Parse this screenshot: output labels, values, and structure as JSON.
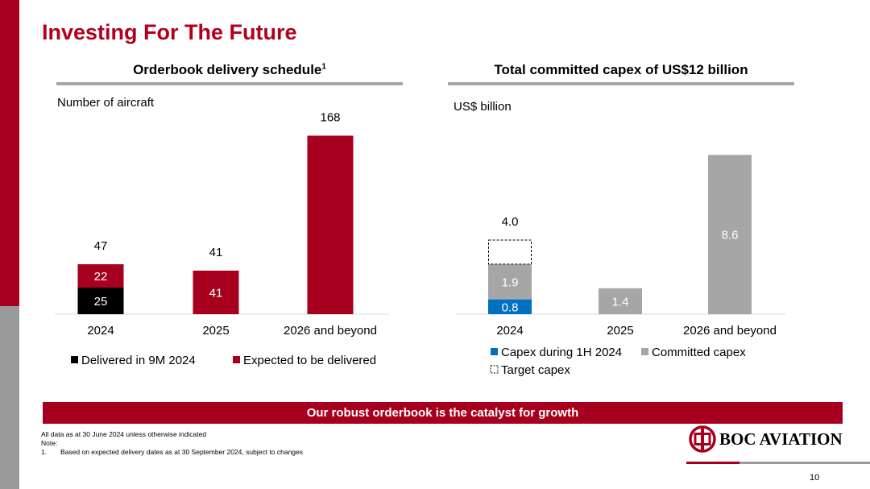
{
  "page": {
    "title": "Investing For The Future",
    "banner": "Our robust orderbook is the catalyst for growth",
    "footnotes": {
      "line1": "All data as at 30 June 2024 unless otherwise indicated",
      "line2": "Note:",
      "line3_num": "1.",
      "line3_text": "Based on expected delivery dates as at 30 September 2024, subject to changes"
    },
    "logo_text": "BOC AVIATION",
    "page_number": "10"
  },
  "colors": {
    "brand_red": "#a6001e",
    "delivered_black": "#000000",
    "capex_blue": "#0070c0",
    "committed_grey": "#a6a6a6"
  },
  "chart_data": [
    {
      "type": "bar",
      "stacked": true,
      "title": "Orderbook delivery schedule",
      "title_superscript": "1",
      "ylabel": "Number of aircraft",
      "categories": [
        "2024",
        "2025",
        "2026 and beyond"
      ],
      "series": [
        {
          "name": "Delivered in 9M 2024",
          "values": [
            25,
            0,
            0
          ],
          "labels": [
            "25",
            "",
            ""
          ]
        },
        {
          "name": "Expected to be delivered",
          "values": [
            22,
            41,
            168
          ],
          "labels": [
            "22",
            "41",
            ""
          ]
        }
      ],
      "totals": [
        "47",
        "41",
        "168"
      ],
      "ylim": [
        0,
        180
      ],
      "legend": "bottom"
    },
    {
      "type": "bar",
      "stacked": true,
      "title": "Total committed capex of US$12 billion",
      "ylabel": "US$ billion",
      "categories": [
        "2024",
        "2025",
        "2026 and beyond"
      ],
      "series": [
        {
          "name": "Capex during 1H 2024",
          "values": [
            0.8,
            0,
            0
          ],
          "labels": [
            "0.8",
            "",
            ""
          ]
        },
        {
          "name": "Committed capex",
          "values": [
            1.9,
            1.4,
            8.6
          ],
          "labels": [
            "1.9",
            "1.4",
            "8.6"
          ]
        },
        {
          "name": "Target capex",
          "values": [
            1.3,
            0,
            0
          ],
          "labels": [
            "",
            "",
            ""
          ],
          "style": "dashed-outline"
        }
      ],
      "totals": [
        "4.0",
        "",
        ""
      ],
      "ylim": [
        0,
        9.5
      ],
      "legend": "bottom"
    }
  ]
}
